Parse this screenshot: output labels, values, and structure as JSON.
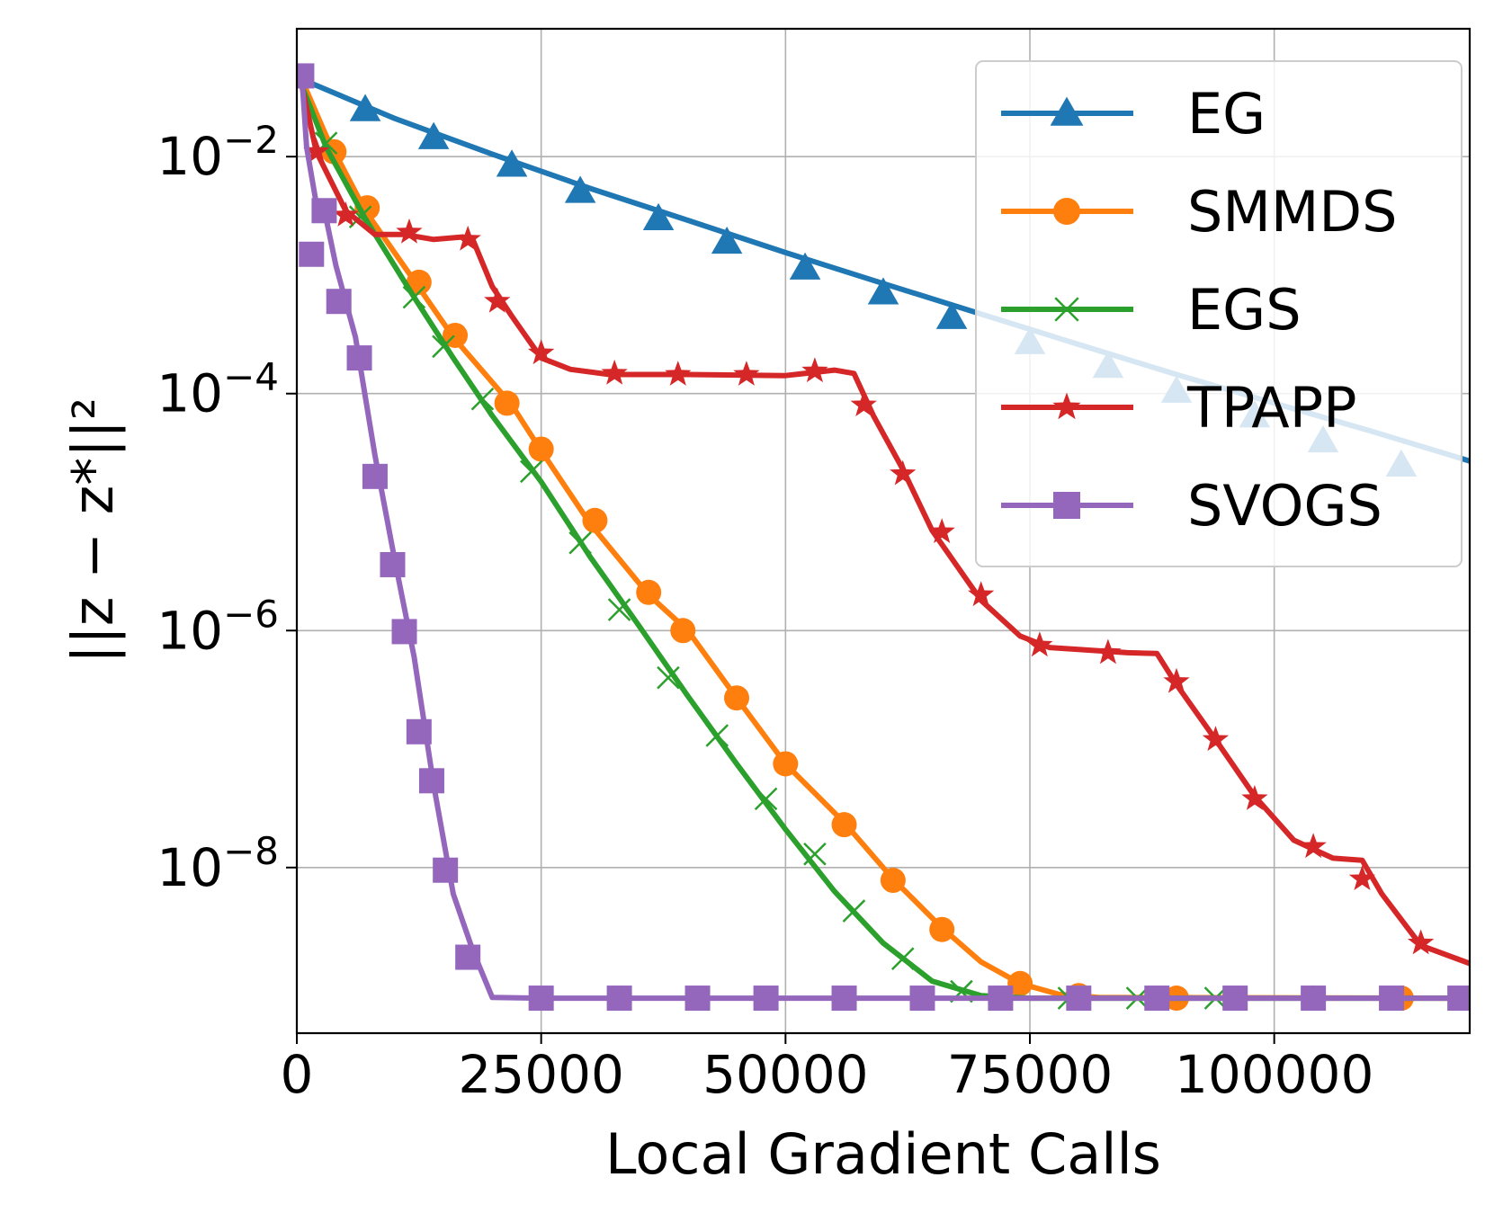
{
  "chart_data": {
    "type": "line",
    "xlabel": "Local Gradient Calls",
    "ylabel": "||z − z*||²",
    "y_scale": "log",
    "xlim": [
      0,
      120000
    ],
    "ylim": [
      4e-10,
      0.12
    ],
    "grid": true,
    "legend_position": "top-right",
    "x_ticks": [
      {
        "value": 0,
        "label": "0"
      },
      {
        "value": 25000,
        "label": "25000"
      },
      {
        "value": 50000,
        "label": "50000"
      },
      {
        "value": 75000,
        "label": "75000"
      },
      {
        "value": 100000,
        "label": "100000"
      }
    ],
    "y_ticks": [
      {
        "value": 0.01,
        "base": "10",
        "exp": "−2"
      },
      {
        "value": 0.0001,
        "base": "10",
        "exp": "−4"
      },
      {
        "value": 1e-06,
        "base": "10",
        "exp": "−6"
      },
      {
        "value": 1e-08,
        "base": "10",
        "exp": "−8"
      }
    ],
    "series": [
      {
        "name": "EG",
        "color": "#1f77b4",
        "marker": "triangle",
        "line": [
          [
            500,
            0.045
          ],
          [
            10000,
            0.021
          ],
          [
            20000,
            0.0105
          ],
          [
            30000,
            0.0054
          ],
          [
            40000,
            0.0029
          ],
          [
            50000,
            0.00155
          ],
          [
            60000,
            0.00085
          ],
          [
            70000,
            0.00047
          ],
          [
            80000,
            0.00026
          ],
          [
            90000,
            0.000145
          ],
          [
            100000,
            8.3e-05
          ],
          [
            110000,
            4.8e-05
          ],
          [
            120000,
            2.7e-05
          ]
        ],
        "markers": [
          [
            7000,
            0.025
          ],
          [
            14000,
            0.0145
          ],
          [
            22000,
            0.0085
          ],
          [
            29000,
            0.0051
          ],
          [
            37000,
            0.003
          ],
          [
            44000,
            0.0019
          ],
          [
            52000,
            0.00115
          ],
          [
            60000,
            0.00071
          ],
          [
            67000,
            0.00044
          ],
          [
            75000,
            0.00027
          ],
          [
            83000,
            0.00017
          ],
          [
            90000,
            0.000105
          ],
          [
            98000,
            6.5e-05
          ],
          [
            105000,
            4e-05
          ],
          [
            113000,
            2.5e-05
          ]
        ]
      },
      {
        "name": "SMMDS",
        "color": "#ff7f0e",
        "marker": "circle",
        "line": [
          [
            500,
            0.045
          ],
          [
            3000,
            0.015
          ],
          [
            7000,
            0.0035
          ],
          [
            12000,
            0.0009
          ],
          [
            16000,
            0.0003
          ],
          [
            22000,
            8e-05
          ],
          [
            25000,
            3.3e-05
          ],
          [
            30000,
            8e-06
          ],
          [
            36000,
            2e-06
          ],
          [
            40000,
            1e-06
          ],
          [
            45000,
            2.7e-07
          ],
          [
            50000,
            7.5e-08
          ],
          [
            56000,
            2.4e-08
          ],
          [
            61000,
            8e-09
          ],
          [
            66000,
            3.1e-09
          ],
          [
            70000,
            1.6e-09
          ],
          [
            74000,
            1.05e-09
          ],
          [
            78000,
            8.5e-10
          ],
          [
            82000,
            8e-10
          ],
          [
            120000,
            7.9e-10
          ]
        ],
        "markers": [
          [
            3800,
            0.011
          ],
          [
            7200,
            0.0037
          ],
          [
            12500,
            0.00087
          ],
          [
            16200,
            0.00031
          ],
          [
            21500,
            8.3e-05
          ],
          [
            25000,
            3.4e-05
          ],
          [
            30500,
            8.5e-06
          ],
          [
            36000,
            2.1e-06
          ],
          [
            39500,
            1e-06
          ],
          [
            45000,
            2.7e-07
          ],
          [
            50000,
            7.5e-08
          ],
          [
            56000,
            2.3e-08
          ],
          [
            61000,
            7.8e-09
          ],
          [
            66000,
            3e-09
          ],
          [
            74000,
            1.05e-09
          ],
          [
            80000,
            8.3e-10
          ],
          [
            90000,
            7.9e-10
          ],
          [
            104000,
            7.9e-10
          ],
          [
            113000,
            7.9e-10
          ]
        ]
      },
      {
        "name": "EGS",
        "color": "#2ca02c",
        "marker": "x",
        "line": [
          [
            500,
            0.04
          ],
          [
            3000,
            0.012
          ],
          [
            7000,
            0.003
          ],
          [
            12000,
            0.00065
          ],
          [
            16000,
            0.0002
          ],
          [
            20000,
            6.5e-05
          ],
          [
            25000,
            1.8e-05
          ],
          [
            30000,
            4.2e-06
          ],
          [
            35000,
            1.1e-06
          ],
          [
            40000,
            2.8e-07
          ],
          [
            45000,
            7.5e-08
          ],
          [
            50000,
            2.1e-08
          ],
          [
            55000,
            6.3e-09
          ],
          [
            60000,
            2.3e-09
          ],
          [
            65000,
            1.1e-09
          ],
          [
            70000,
            8.3e-10
          ],
          [
            75000,
            7.9e-10
          ],
          [
            120000,
            7.9e-10
          ]
        ],
        "markers": [
          [
            3000,
            0.013
          ],
          [
            6500,
            0.0031
          ],
          [
            12000,
            0.00065
          ],
          [
            15000,
            0.00025
          ],
          [
            19000,
            9e-05
          ],
          [
            24000,
            2.2e-05
          ],
          [
            29000,
            5.5e-06
          ],
          [
            33000,
            1.5e-06
          ],
          [
            38000,
            4e-07
          ],
          [
            43000,
            1.3e-07
          ],
          [
            48000,
            3.8e-08
          ],
          [
            53000,
            1.3e-08
          ],
          [
            57000,
            4.3e-09
          ],
          [
            62000,
            1.7e-09
          ],
          [
            68000,
            9e-10
          ],
          [
            79000,
            7.9e-10
          ],
          [
            86000,
            7.9e-10
          ],
          [
            94000,
            7.9e-10
          ],
          [
            104000,
            7.9e-10
          ],
          [
            112000,
            7.9e-10
          ],
          [
            120000,
            7.9e-10
          ]
        ]
      },
      {
        "name": "TPAPP",
        "color": "#d62728",
        "marker": "star",
        "line": [
          [
            500,
            0.04
          ],
          [
            2000,
            0.011
          ],
          [
            5000,
            0.0035
          ],
          [
            8000,
            0.0022
          ],
          [
            11000,
            0.0022
          ],
          [
            14000,
            0.002
          ],
          [
            17000,
            0.0021
          ],
          [
            18000,
            0.002
          ],
          [
            20000,
            0.0008
          ],
          [
            22000,
            0.00045
          ],
          [
            25000,
            0.0002
          ],
          [
            28000,
            0.00016
          ],
          [
            32000,
            0.000145
          ],
          [
            40000,
            0.000145
          ],
          [
            50000,
            0.000142
          ],
          [
            55000,
            0.000158
          ],
          [
            57000,
            0.000148
          ],
          [
            59000,
            6.5e-05
          ],
          [
            62000,
            2.3e-05
          ],
          [
            65000,
            7e-06
          ],
          [
            70000,
            1.8e-06
          ],
          [
            74000,
            9e-07
          ],
          [
            77000,
            7.2e-07
          ],
          [
            85000,
            6.5e-07
          ],
          [
            88000,
            6.4e-07
          ],
          [
            90000,
            3.5e-07
          ],
          [
            94000,
            1.2e-07
          ],
          [
            98000,
            4e-08
          ],
          [
            102000,
            1.7e-08
          ],
          [
            106000,
            1.2e-08
          ],
          [
            109000,
            1.15e-08
          ],
          [
            111000,
            6e-09
          ],
          [
            115000,
            2.2e-09
          ],
          [
            120000,
            1.55e-09
          ]
        ],
        "markers": [
          [
            2000,
            0.011
          ],
          [
            5000,
            0.0032
          ],
          [
            11500,
            0.0023
          ],
          [
            17500,
            0.002
          ],
          [
            20500,
            0.0006
          ],
          [
            25000,
            0.00022
          ],
          [
            32500,
            0.000148
          ],
          [
            39000,
            0.000145
          ],
          [
            46000,
            0.000145
          ],
          [
            53000,
            0.000155
          ],
          [
            58000,
            8e-05
          ],
          [
            62000,
            2.1e-05
          ],
          [
            66000,
            6.8e-06
          ],
          [
            70000,
            2e-06
          ],
          [
            76000,
            7.5e-07
          ],
          [
            83000,
            6.5e-07
          ],
          [
            90000,
            3.7e-07
          ],
          [
            94000,
            1.2e-07
          ],
          [
            98000,
            3.8e-08
          ],
          [
            104000,
            1.5e-08
          ],
          [
            109000,
            8e-09
          ],
          [
            115000,
            2.3e-09
          ]
        ]
      },
      {
        "name": "SVOGS",
        "color": "#9467bd",
        "marker": "square",
        "line": [
          [
            500,
            0.05
          ],
          [
            1000,
            0.012
          ],
          [
            2000,
            0.004
          ],
          [
            3000,
            0.003
          ],
          [
            4000,
            0.0012
          ],
          [
            6000,
            0.0003
          ],
          [
            8000,
            3e-05
          ],
          [
            10000,
            4e-06
          ],
          [
            12000,
            6e-07
          ],
          [
            14000,
            5e-08
          ],
          [
            16000,
            6e-09
          ],
          [
            18000,
            2e-09
          ],
          [
            20000,
            8e-10
          ],
          [
            25000,
            7.9e-10
          ],
          [
            120000,
            7.9e-10
          ]
        ],
        "markers": [
          [
            500,
            0.048
          ],
          [
            1500,
            0.0015
          ],
          [
            2800,
            0.0035
          ],
          [
            4300,
            0.0006
          ],
          [
            6400,
            0.0002
          ],
          [
            8000,
            2e-05
          ],
          [
            9800,
            3.6e-06
          ],
          [
            11000,
            9.8e-07
          ],
          [
            12500,
            1.4e-07
          ],
          [
            13800,
            5.4e-08
          ],
          [
            15200,
            9.5e-09
          ],
          [
            17500,
            1.75e-09
          ],
          [
            25000,
            7.9e-10
          ],
          [
            33000,
            7.9e-10
          ],
          [
            41000,
            7.9e-10
          ],
          [
            48000,
            7.9e-10
          ],
          [
            56000,
            7.9e-10
          ],
          [
            64000,
            7.9e-10
          ],
          [
            72000,
            7.9e-10
          ],
          [
            80000,
            7.9e-10
          ],
          [
            88000,
            7.9e-10
          ],
          [
            96000,
            7.9e-10
          ],
          [
            104000,
            7.9e-10
          ],
          [
            112000,
            7.9e-10
          ],
          [
            119000,
            7.9e-10
          ]
        ]
      }
    ]
  }
}
